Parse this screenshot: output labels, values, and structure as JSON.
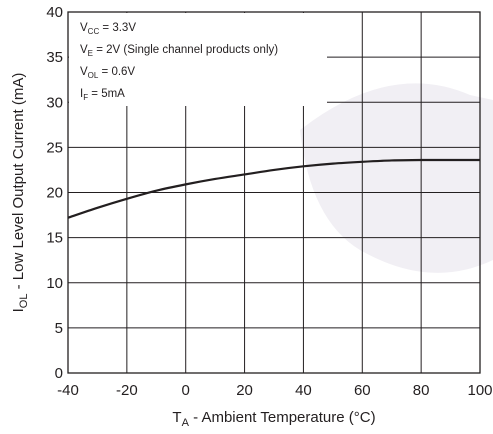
{
  "chart_data": {
    "type": "line",
    "x_label": {
      "main": "T",
      "sub": "A",
      "rest": " - Ambient Temperature (°C)"
    },
    "y_label": {
      "main": "I",
      "sub": "OL",
      "rest": " - Low Level Output Current (mA)"
    },
    "xlim": [
      -40,
      100
    ],
    "ylim": [
      0,
      40
    ],
    "x_ticks": [
      -40,
      -20,
      0,
      20,
      40,
      60,
      80,
      100
    ],
    "y_ticks": [
      0,
      5,
      10,
      15,
      20,
      25,
      30,
      35,
      40
    ],
    "grid": true,
    "annotations": [
      {
        "main": "V",
        "sub": "CC",
        "rest": " = 3.3V"
      },
      {
        "main": "V",
        "sub": "E",
        "rest": " = 2V (Single channel products only)"
      },
      {
        "main": "V",
        "sub": "OL",
        "rest": " = 0.6V"
      },
      {
        "main": "I",
        "sub": "F",
        "rest": " = 5mA"
      }
    ],
    "series": [
      {
        "x": [
          -40,
          -30,
          -20,
          -10,
          0,
          10,
          20,
          30,
          40,
          50,
          60,
          70,
          80,
          90,
          100
        ],
        "y": [
          17.2,
          18.3,
          19.3,
          20.2,
          20.9,
          21.5,
          22.0,
          22.5,
          22.9,
          23.2,
          23.4,
          23.55,
          23.6,
          23.6,
          23.6
        ]
      }
    ]
  },
  "colors": {
    "line": "#231f20",
    "grid": "#231f20",
    "text": "#231f20",
    "watermark": "#f0eef3"
  }
}
